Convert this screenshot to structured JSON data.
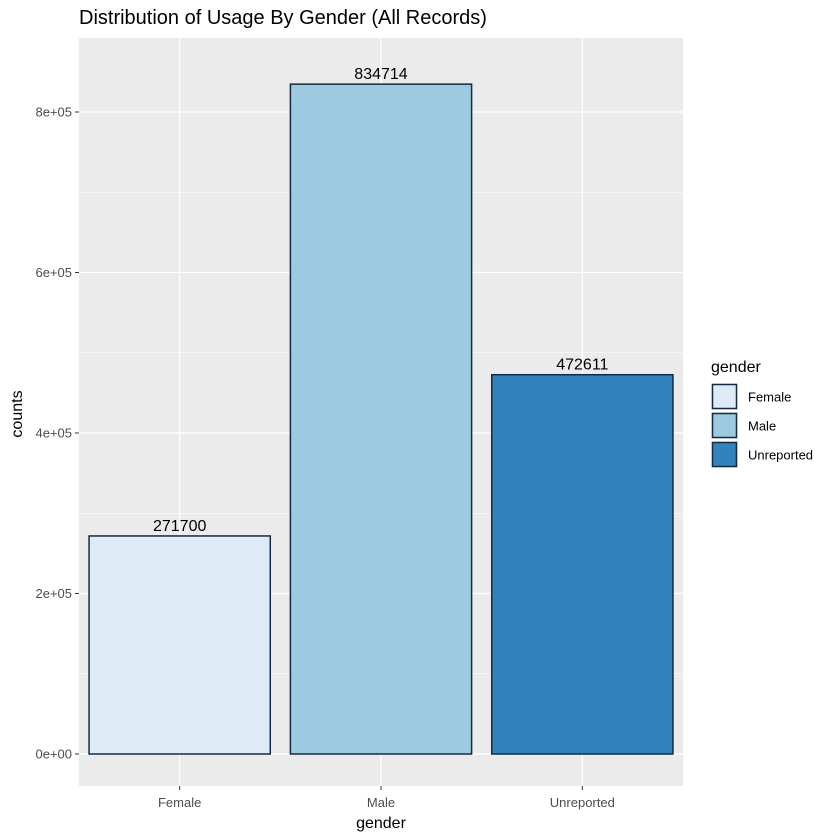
{
  "chart_data": {
    "type": "bar",
    "title": "Distribution of Usage By Gender (All Records)",
    "xlabel": "gender",
    "ylabel": "counts",
    "categories": [
      "Female",
      "Male",
      "Unreported"
    ],
    "values": [
      271700,
      834714,
      472611
    ],
    "data_labels": [
      "271700",
      "834714",
      "472611"
    ],
    "colors": [
      "#deebf7",
      "#9ecae1",
      "#3182bd"
    ],
    "bar_outline": "#132b43",
    "ylim": [
      0,
      880000
    ],
    "y_ticks": [
      0,
      200000,
      400000,
      600000,
      800000
    ],
    "y_tick_labels": [
      "0e+00",
      "2e+05",
      "4e+05",
      "6e+05",
      "8e+05"
    ],
    "grid": true,
    "panel_background": "#ebebeb",
    "grid_color": "#ffffff",
    "legend": {
      "title": "gender",
      "position": "right",
      "entries": [
        "Female",
        "Male",
        "Unreported"
      ]
    }
  }
}
